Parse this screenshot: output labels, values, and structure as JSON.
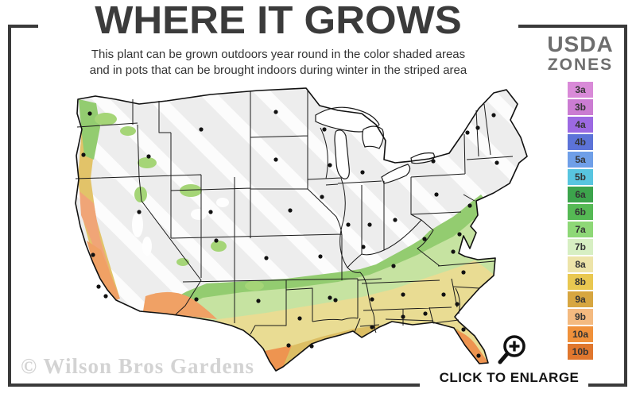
{
  "header": {
    "title": "WHERE IT GROWS",
    "subtitle_line1": "This plant can be grown outdoors year round in the color shaded areas",
    "subtitle_line2": "and in pots that can be brought indoors during winter in the striped area"
  },
  "legend": {
    "title_line1": "USDA",
    "title_line2": "ZONES",
    "zones": [
      {
        "label": "3a",
        "color": "#D98AD8"
      },
      {
        "label": "3b",
        "color": "#CB7CD2"
      },
      {
        "label": "4a",
        "color": "#9C69E2"
      },
      {
        "label": "4b",
        "color": "#5C73D8"
      },
      {
        "label": "5a",
        "color": "#6F9FE8"
      },
      {
        "label": "5b",
        "color": "#58C5E0"
      },
      {
        "label": "6a",
        "color": "#3CA44C"
      },
      {
        "label": "6b",
        "color": "#55B954"
      },
      {
        "label": "7a",
        "color": "#8ED877"
      },
      {
        "label": "7b",
        "color": "#D7EFC3"
      },
      {
        "label": "8a",
        "color": "#EDE4A9"
      },
      {
        "label": "8b",
        "color": "#E9C851"
      },
      {
        "label": "9a",
        "color": "#D7A640"
      },
      {
        "label": "9b",
        "color": "#F4BA80"
      },
      {
        "label": "10a",
        "color": "#F0913B"
      },
      {
        "label": "10b",
        "color": "#E0772E"
      }
    ]
  },
  "map": {
    "colors": {
      "base_gray": "#EDEDED",
      "stripe_white": "#FFFFFF",
      "green_mid": "#93CC70",
      "green_pale": "#C6E3A1",
      "yellow": "#E9DC93",
      "gold": "#DCBE63",
      "west_gold": "#E2C369",
      "west_salmon": "#F0A577",
      "orange": "#F0A165",
      "orange_deep": "#EE9450",
      "green_blob": "#A5D577",
      "outline": "#111111",
      "state_line": "#1a1a1a"
    }
  },
  "footer": {
    "watermark": "© Wilson Bros Gardens",
    "enlarge_label": "CLICK TO ENLARGE"
  },
  "frame_color": "#3A3A3A"
}
